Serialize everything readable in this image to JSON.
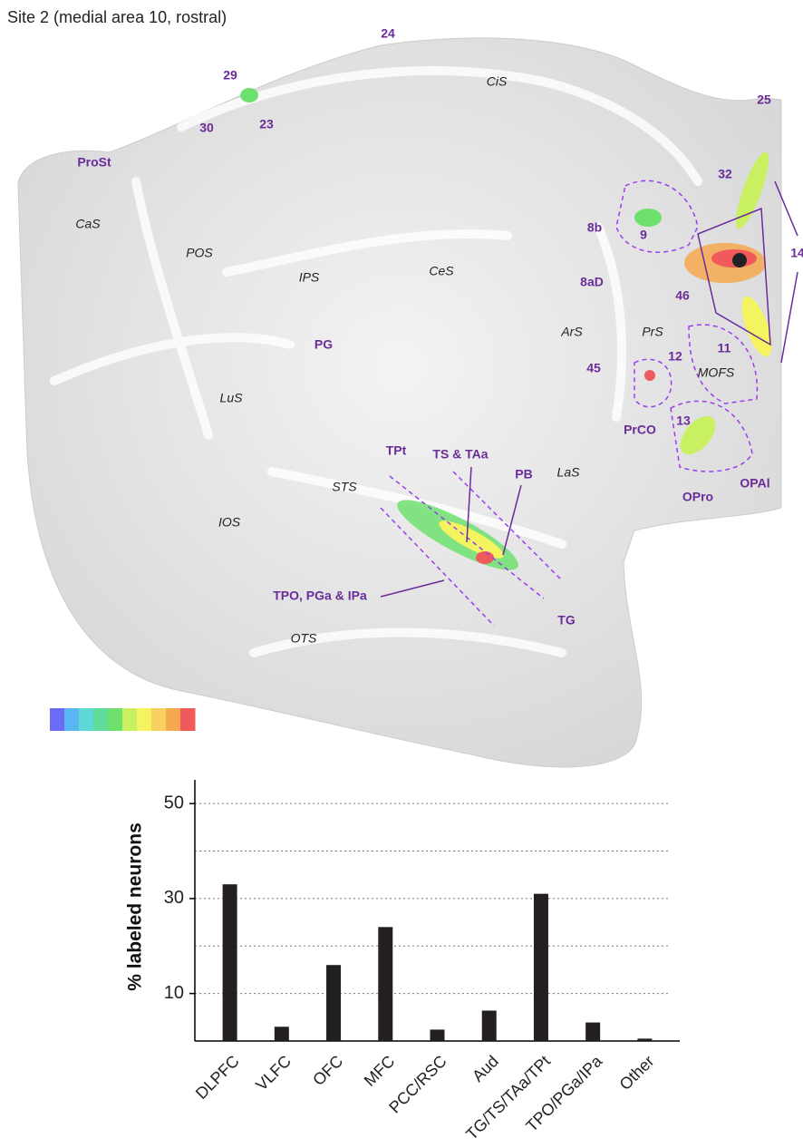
{
  "figure_title": "Site 2 (medial area 10, rostral)",
  "map": {
    "areas": [
      "24",
      "29",
      "30",
      "23",
      "ProSt",
      "25",
      "32",
      "14",
      "8b",
      "9",
      "8aD",
      "46",
      "12",
      "11",
      "45",
      "PrCO",
      "13",
      "OPro",
      "OPAl",
      "TPt",
      "TS & TAa",
      "PB",
      "TG",
      "TPO, PGa & IPa",
      "PG"
    ],
    "sulci": [
      "CiS",
      "CaS",
      "POS",
      "IPS",
      "CeS",
      "ArS",
      "PrS",
      "MOFS",
      "LuS",
      "STS",
      "LaS",
      "IOS",
      "OTS"
    ],
    "colorbar": [
      "#6b6bf5",
      "#5ab6f0",
      "#5fd8d8",
      "#5fdc9a",
      "#6ee06e",
      "#c8f060",
      "#f4f460",
      "#f8d060",
      "#f6a850",
      "#f05a5a"
    ]
  },
  "chart_data": {
    "type": "bar",
    "y_label": "% labeled neurons",
    "categories": [
      "DLPFC",
      "VLFC",
      "OFC",
      "MFC",
      "PCC/RSC",
      "Aud",
      "TG/TS/TAa/TPt",
      "TPO/PGa/IPa",
      "Other"
    ],
    "values": [
      33,
      3,
      16,
      24,
      2.4,
      6.4,
      31,
      3.9,
      0.5
    ],
    "color": "#231f20",
    "ylim": [
      0,
      55
    ],
    "yticks": [
      10,
      30,
      50
    ],
    "yminorticks": [
      20,
      40
    ],
    "grid": true
  }
}
